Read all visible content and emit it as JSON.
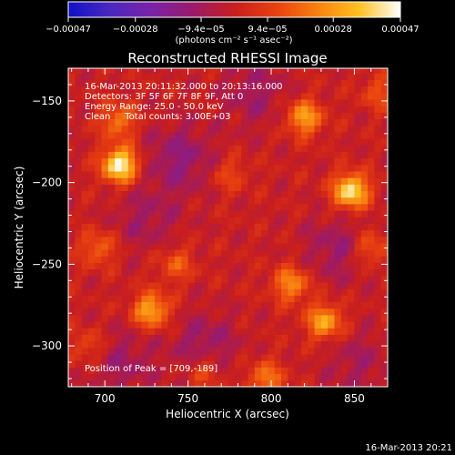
{
  "chart_data": {
    "type": "heatmap",
    "title": "Reconstructed RHESSI Image",
    "xlabel": "Heliocentric X (arcsec)",
    "ylabel": "Heliocentric Y (arcsec)",
    "xlim": [
      678,
      870
    ],
    "ylim": [
      -325,
      -130
    ],
    "x_ticks": [
      {
        "value": 700,
        "label": "700"
      },
      {
        "value": 750,
        "label": "750"
      },
      {
        "value": 800,
        "label": "800"
      },
      {
        "value": 850,
        "label": "850"
      }
    ],
    "y_ticks": [
      {
        "value": -150,
        "label": "−150"
      },
      {
        "value": -200,
        "label": "−200"
      },
      {
        "value": -250,
        "label": "−250"
      },
      {
        "value": -300,
        "label": "−300"
      }
    ],
    "colorbar": {
      "range": [
        -0.00047,
        0.00047
      ],
      "tick_labels": [
        "−0.00047",
        "−0.00028",
        "−9.4e−05",
        "9.4e−05",
        "0.00028",
        "0.00047"
      ],
      "unit_label": "(photons cm⁻² s⁻¹ asec⁻²)",
      "colors": [
        "#1010c8",
        "#4a28c0",
        "#7a22a8",
        "#9a1a6a",
        "#c81e1e",
        "#e84010",
        "#f88010",
        "#ffc020",
        "#ffffff"
      ]
    },
    "info_lines": [
      "16-Mar-2013 20:11:32.000 to 20:13:16.000",
      "Detectors: 3F 5F 6F 7F 8F 9F, Att 0",
      "Energy Range: 25.0 - 50.0 keV",
      "Clean     Total counts: 3.00E+03"
    ],
    "peak_label": "Position of Peak = [709,-189]",
    "sources": [
      {
        "x": 709,
        "y": -189,
        "peak": 0.00047
      },
      {
        "x": 848,
        "y": -205,
        "peak": 0.00043
      },
      {
        "x": 820,
        "y": -160,
        "peak": 0.0003
      },
      {
        "x": 832,
        "y": -285,
        "peak": 0.00031
      },
      {
        "x": 728,
        "y": -278,
        "peak": 0.00032
      },
      {
        "x": 812,
        "y": -262,
        "peak": 0.00026
      },
      {
        "x": 708,
        "y": -162,
        "peak": 0.00022
      },
      {
        "x": 696,
        "y": -240,
        "peak": 0.00018
      },
      {
        "x": 797,
        "y": -320,
        "peak": 0.00022
      },
      {
        "x": 743,
        "y": -250,
        "peak": 0.00016
      },
      {
        "x": 860,
        "y": -240,
        "peak": 0.00018
      },
      {
        "x": 775,
        "y": -195,
        "peak": 0.00012
      },
      {
        "x": 690,
        "y": -300,
        "peak": 0.00013
      },
      {
        "x": 760,
        "y": -315,
        "peak": 0.00015
      },
      {
        "x": 865,
        "y": -145,
        "peak": 0.00014
      }
    ],
    "negative_regions": [
      {
        "x": 745,
        "y": -185,
        "depth": -0.00014
      },
      {
        "x": 760,
        "y": -300,
        "depth": -0.00012
      },
      {
        "x": 710,
        "y": -310,
        "depth": -0.0001
      },
      {
        "x": 840,
        "y": -240,
        "depth": -0.00011
      },
      {
        "x": 725,
        "y": -222,
        "depth": -9e-05
      },
      {
        "x": 790,
        "y": -145,
        "depth": -0.0001
      },
      {
        "x": 852,
        "y": -310,
        "depth": -8e-05
      }
    ]
  },
  "footer_timestamp": "16-Mar-2013 20:21"
}
